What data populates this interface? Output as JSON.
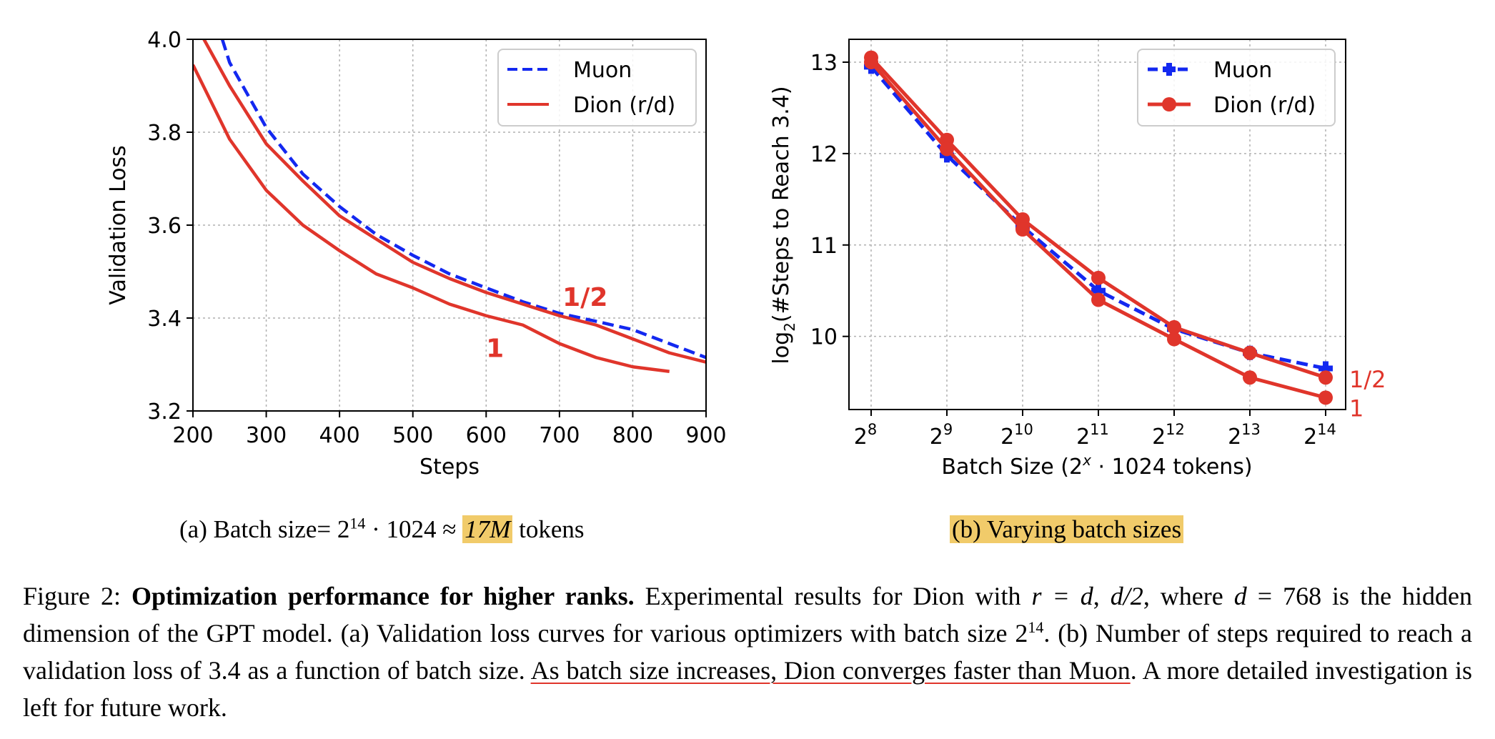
{
  "colors": {
    "muon": "#1328f0",
    "dion": "#e0352b",
    "highlight": "#f1cb6a",
    "grid": "#b0b0b0"
  },
  "chart_data": [
    {
      "type": "line",
      "panel": "a",
      "xlabel": "Steps",
      "ylabel": "Validation Loss",
      "xlim": [
        200,
        900
      ],
      "ylim": [
        3.2,
        4.0
      ],
      "xticks": [
        200,
        300,
        400,
        500,
        600,
        700,
        800,
        900
      ],
      "yticks": [
        3.2,
        3.4,
        3.6,
        3.8,
        4.0
      ],
      "ytick_labels": [
        "3.2",
        "3.4",
        "3.6",
        "3.8",
        "4.0"
      ],
      "grid": true,
      "legend": {
        "position": "top-right",
        "entries": [
          {
            "name": "Muon",
            "style": "dashed"
          },
          {
            "name": "Dion (r/d)",
            "style": "solid"
          }
        ]
      },
      "series": [
        {
          "name": "Muon",
          "style": "dashed",
          "x": [
            240,
            250,
            300,
            350,
            400,
            450,
            500,
            550,
            600,
            650,
            700,
            750,
            800,
            850,
            900
          ],
          "y": [
            4.0,
            3.95,
            3.81,
            3.71,
            3.64,
            3.58,
            3.535,
            3.495,
            3.465,
            3.435,
            3.41,
            3.393,
            3.375,
            3.345,
            3.315
          ]
        },
        {
          "name": "Dion r/d=1/2",
          "style": "solid",
          "x": [
            215,
            250,
            300,
            350,
            400,
            450,
            500,
            550,
            600,
            650,
            700,
            750,
            800,
            850,
            900
          ],
          "y": [
            4.0,
            3.9,
            3.775,
            3.695,
            3.62,
            3.57,
            3.52,
            3.485,
            3.455,
            3.43,
            3.405,
            3.385,
            3.355,
            3.325,
            3.305
          ]
        },
        {
          "name": "Dion r/d=1",
          "style": "solid",
          "x": [
            200,
            250,
            300,
            350,
            400,
            450,
            500,
            550,
            600,
            650,
            700,
            750,
            800,
            850
          ],
          "y": [
            3.945,
            3.785,
            3.675,
            3.6,
            3.545,
            3.495,
            3.465,
            3.43,
            3.405,
            3.385,
            3.345,
            3.315,
            3.295,
            3.285
          ]
        }
      ],
      "annotations": [
        {
          "text": "1/2",
          "x": 735,
          "y": 3.445
        },
        {
          "text": "1",
          "x": 612,
          "y": 3.335
        }
      ]
    },
    {
      "type": "line",
      "panel": "b",
      "xlabel": "Batch Size (2^x · 1024 tokens)",
      "ylabel": "log2(#Steps to Reach 3.4)",
      "x_exponents": [
        8,
        9,
        10,
        11,
        12,
        13,
        14
      ],
      "xtick_base": "2",
      "ylim": [
        9.2,
        13.25
      ],
      "yticks": [
        10,
        11,
        12,
        13
      ],
      "grid": true,
      "legend": {
        "position": "top-right",
        "entries": [
          {
            "name": "Muon",
            "marker": "plus"
          },
          {
            "name": "Dion (r/d)",
            "marker": "circle"
          }
        ]
      },
      "series": [
        {
          "name": "Muon",
          "marker": "plus",
          "style": "dashed",
          "x": [
            8,
            9,
            10,
            11,
            12,
            13,
            14
          ],
          "y": [
            12.95,
            11.98,
            11.2,
            10.5,
            10.08,
            9.82,
            9.65
          ]
        },
        {
          "name": "Dion r/d=1/2",
          "marker": "circle",
          "style": "solid",
          "x": [
            8,
            9,
            10,
            11,
            12,
            13,
            14
          ],
          "y": [
            13.05,
            12.15,
            11.28,
            10.64,
            10.1,
            9.82,
            9.55
          ]
        },
        {
          "name": "Dion r/d=1",
          "marker": "circle",
          "style": "solid",
          "x": [
            8,
            9,
            10,
            11,
            12,
            13,
            14
          ],
          "y": [
            13.0,
            12.05,
            11.17,
            10.4,
            9.97,
            9.55,
            9.33
          ]
        }
      ],
      "annotations": [
        {
          "text": "1/2",
          "x": 14,
          "y": 9.55
        },
        {
          "text": "1",
          "x": 14,
          "y": 9.33
        }
      ]
    }
  ],
  "captions": {
    "a_prefix": "(a) Batch size= 2",
    "a_exp": "14",
    "a_mid": " · 1024 ≈ ",
    "a_highlight": "17M",
    "a_suffix": " tokens",
    "b": "(b) Varying batch sizes"
  },
  "figure_caption": {
    "label": "Figure 2: ",
    "bold": "Optimization performance for higher ranks.",
    "t1": " Experimental results for Dion with ",
    "m1": "r = d",
    "t2": ", ",
    "m2": "d/2",
    "t3": ", where ",
    "m3": "d",
    "t4": " = 768 is the hidden dimension of the GPT model. (a) Validation loss curves for various optimizers with batch size 2",
    "exp": "14",
    "t5": ". (b) Number of steps required to reach a validation loss of 3.4 as a function of batch size. ",
    "underlined": "As batch size increases, Dion converges faster than Muon",
    "t6": ". A more detailed investigation is left for future work."
  }
}
